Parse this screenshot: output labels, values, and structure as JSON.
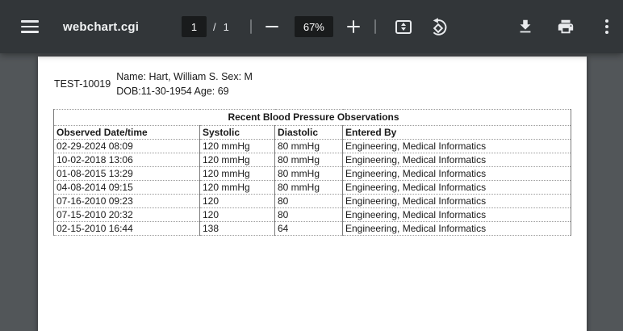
{
  "toolbar": {
    "title": "webchart.cgi",
    "page_current": "1",
    "page_divider": "/",
    "page_total": "1",
    "zoom_level": "67%",
    "icons": {
      "menu": "hamburger-three-bars",
      "zoom_out": "minus",
      "zoom_in": "plus",
      "fit": "fit-to-page-rect-with-vertical-arrows",
      "rotate": "rotate-counterclockwise-diamond-arrow",
      "download": "down-arrow-over-bar",
      "print": "printer",
      "more": "three-vertical-dots"
    }
  },
  "document": {
    "patient_id": "TEST-10019",
    "patient_line1": "Name: Hart, William S. Sex: M",
    "patient_line2": "DOB:11-30-1954 Age: 69",
    "table": {
      "title": "Recent Blood Pressure Observations",
      "columns": [
        "Observed Date/time",
        "Systolic",
        "Diastolic",
        "Entered By"
      ],
      "rows": [
        [
          "02-29-2024 08:09",
          "120 mmHg",
          "80 mmHg",
          "Engineering, Medical Informatics"
        ],
        [
          "10-02-2018 13:06",
          "120 mmHg",
          "80 mmHg",
          "Engineering, Medical Informatics"
        ],
        [
          "01-08-2015 13:29",
          "120 mmHg",
          "80 mmHg",
          "Engineering, Medical Informatics"
        ],
        [
          "04-08-2014 09:15",
          "120 mmHg",
          "80 mmHg",
          "Engineering, Medical Informatics"
        ],
        [
          "07-16-2010 09:23",
          "120",
          "80",
          "Engineering, Medical Informatics"
        ],
        [
          "07-15-2010 20:32",
          "120",
          "80",
          "Engineering, Medical Informatics"
        ],
        [
          "02-15-2010 16:44",
          "138",
          "64",
          "Engineering, Medical Informatics"
        ]
      ]
    }
  },
  "colors": {
    "toolbar_bg": "#323639",
    "viewer_bg": "#525659",
    "input_bg": "#191b1c",
    "icon": "#e8eaed",
    "page_bg": "#ffffff"
  }
}
